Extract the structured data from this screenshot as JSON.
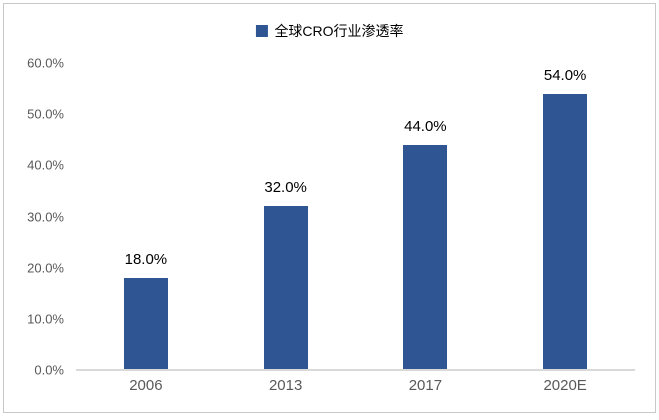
{
  "chart_data": {
    "type": "bar",
    "title": "",
    "legend": "全球CRO行业渗透率",
    "legend_position": "top-center",
    "categories": [
      "2006",
      "2013",
      "2017",
      "2020E"
    ],
    "values": [
      18,
      32,
      44,
      54
    ],
    "value_labels": [
      "18.0%",
      "32.0%",
      "44.0%",
      "54.0%"
    ],
    "xlabel": "",
    "ylabel": "",
    "ylim": [
      0,
      60
    ],
    "yticks": [
      0,
      10,
      20,
      30,
      40,
      50,
      60
    ],
    "ytick_labels": [
      "0.0%",
      "10.0%",
      "20.0%",
      "30.0%",
      "40.0%",
      "50.0%",
      "60.0%"
    ],
    "grid": false,
    "colors": {
      "bar": "#2F5693",
      "axis_line": "#D9D9D9",
      "tick_text": "#595959",
      "data_label_text": "#000000",
      "legend_text": "#000000",
      "frame_border": "#C8C8C8",
      "background": "#FFFFFF"
    }
  }
}
